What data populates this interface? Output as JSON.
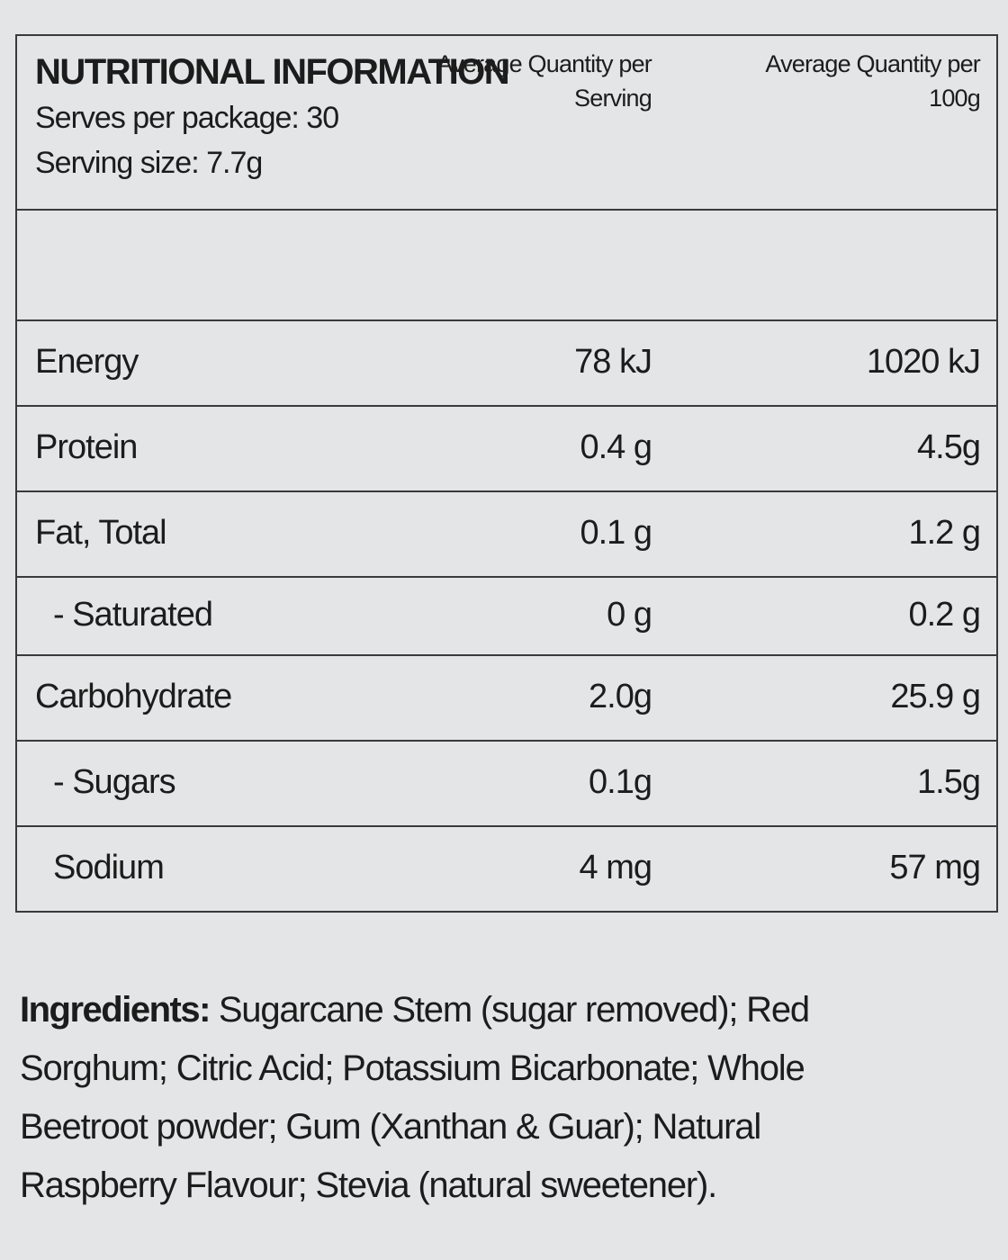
{
  "header": {
    "title": "NUTRITIONAL INFORMATION",
    "serves": "Serves per package: 30",
    "serving_size": "Serving size: 7.7g"
  },
  "table": {
    "columns": [
      "Average Quantity per Serving",
      "Average Quantity per 100g"
    ],
    "rows": [
      [
        "Energy",
        "78 kJ",
        "1020 kJ"
      ],
      [
        "Protein",
        "0.4 g",
        "4.5g"
      ],
      [
        "Fat, Total",
        "0.1 g",
        "1.2 g"
      ],
      [
        "- Saturated",
        "0 g",
        "0.2 g"
      ],
      [
        "Carbohydrate",
        "2.0g",
        "25.9 g"
      ],
      [
        "- Sugars",
        "0.1g",
        "1.5g"
      ],
      [
        "Sodium",
        "4 mg",
        "57 mg"
      ]
    ]
  },
  "ingredients": {
    "label": "Ingredients:",
    "text": "Sugarcane Stem (sugar removed); Red Sorghum; Citric Acid; Potassium Bicarbonate; Whole Beetroot powder; Gum (Xanthan & Guar); Natural Raspberry Flavour; Stevia (natural sweetener)."
  }
}
